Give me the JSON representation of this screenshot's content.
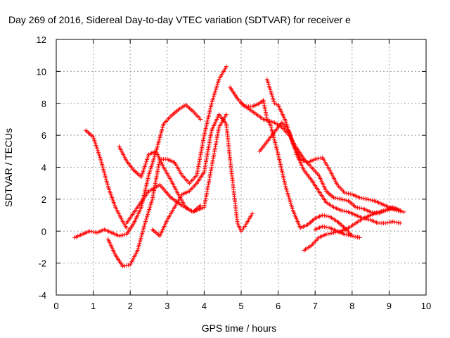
{
  "chart_data": {
    "type": "scatter",
    "title": "Day 269 of 2016, Sidereal Day-to-day VTEC variation (SDTVAR) for receiver e",
    "xlabel": "GPS time / hours",
    "ylabel": "SDTVAR / TECUs",
    "xlim": [
      0,
      10
    ],
    "ylim": [
      -4,
      12
    ],
    "x_ticks": [
      "0",
      "1",
      "2",
      "3",
      "4",
      "5",
      "6",
      "7",
      "8",
      "9",
      "10"
    ],
    "y_ticks": [
      "-4",
      "-2",
      "0",
      "2",
      "4",
      "6",
      "8",
      "10",
      "12"
    ],
    "grid": true,
    "marker": "+",
    "colors": {
      "series": "#ff0000",
      "grid": "#a0a0a0",
      "axes": "#000000"
    },
    "series": [
      {
        "x": [
          0.8,
          1.0,
          1.2,
          1.4,
          1.6,
          1.8,
          1.9
        ],
        "y": [
          6.3,
          5.9,
          4.5,
          2.8,
          1.5,
          0.6,
          0.2
        ]
      },
      {
        "x": [
          0.5,
          0.7,
          0.9,
          1.1,
          1.3,
          1.5,
          1.7,
          1.9,
          2.1,
          2.3,
          2.5,
          2.7,
          2.9,
          3.1,
          3.3,
          3.5,
          3.7,
          3.9
        ],
        "y": [
          -0.4,
          -0.2,
          0.0,
          -0.1,
          0.1,
          -0.1,
          -0.3,
          -0.2,
          0.5,
          1.5,
          3.5,
          5.0,
          6.7,
          7.2,
          7.6,
          7.9,
          7.5,
          7.0
        ]
      },
      {
        "x": [
          1.4,
          1.6,
          1.8,
          2.0,
          2.2,
          2.4,
          2.6,
          2.8,
          3.0,
          3.2,
          3.4,
          3.6,
          3.8,
          4.0,
          4.2,
          4.4,
          4.6
        ],
        "y": [
          -0.5,
          -1.5,
          -2.2,
          -2.1,
          -1.2,
          0.5,
          2.0,
          4.5,
          4.5,
          4.3,
          3.5,
          3.0,
          3.5,
          6.0,
          8.0,
          9.5,
          10.3
        ]
      },
      {
        "x": [
          1.7,
          1.9,
          2.1,
          2.3,
          2.5,
          2.7,
          2.9,
          3.1,
          3.3,
          3.5,
          3.7,
          3.9
        ],
        "y": [
          5.3,
          4.4,
          3.8,
          3.4,
          4.8,
          5.0,
          4.0,
          3.2,
          2.3,
          1.5,
          1.2,
          1.6
        ]
      },
      {
        "x": [
          2.6,
          2.8,
          3.0,
          3.2,
          3.4,
          3.6,
          3.8,
          4.0,
          4.2,
          4.4,
          4.6,
          4.7,
          4.8,
          4.9,
          5.0,
          5.1,
          5.2,
          5.3
        ],
        "y": [
          0.1,
          -0.3,
          0.7,
          1.5,
          2.3,
          2.5,
          3.0,
          3.7,
          6.3,
          7.3,
          6.7,
          4.5,
          2.5,
          0.5,
          0.0,
          0.3,
          0.7,
          1.1
        ]
      },
      {
        "x": [
          1.9,
          2.2,
          2.5,
          2.8,
          3.1,
          3.4,
          3.7,
          4.0,
          4.2,
          4.4,
          4.6
        ],
        "y": [
          0.5,
          1.5,
          2.5,
          2.9,
          2.1,
          1.6,
          1.2,
          1.5,
          4.0,
          6.5,
          7.3
        ]
      },
      {
        "x": [
          4.7,
          4.9,
          5.1,
          5.3,
          5.5,
          5.6,
          5.7,
          5.8,
          6.0,
          6.2,
          6.4,
          6.6,
          6.8,
          7.0,
          7.2,
          7.4,
          7.6,
          7.8,
          8.0,
          8.2
        ],
        "y": [
          9.0,
          8.3,
          7.8,
          7.8,
          8.0,
          8.2,
          7.0,
          6.6,
          4.8,
          2.8,
          1.3,
          0.2,
          0.4,
          0.8,
          1.0,
          0.9,
          0.6,
          0.2,
          -0.3,
          -0.4
        ]
      },
      {
        "x": [
          5.0,
          5.3,
          5.6,
          5.9,
          6.1,
          6.3,
          6.5,
          6.7,
          6.9,
          7.1,
          7.3,
          7.5,
          7.7,
          7.9,
          8.1,
          8.3,
          8.5,
          8.7,
          8.9,
          9.1,
          9.3
        ],
        "y": [
          8.0,
          7.5,
          7.0,
          6.8,
          6.5,
          6.0,
          5.2,
          4.5,
          4.0,
          3.5,
          2.5,
          2.1,
          2.0,
          1.9,
          1.5,
          1.4,
          1.2,
          1.1,
          1.3,
          1.5,
          1.3
        ]
      },
      {
        "x": [
          5.7,
          5.9,
          6.0,
          6.2,
          6.4,
          6.6,
          6.8,
          7.0,
          7.2,
          7.4,
          7.6,
          7.8,
          8.0,
          8.2,
          8.4,
          8.6,
          8.8,
          9.0,
          9.2,
          9.4
        ],
        "y": [
          9.5,
          8.0,
          7.9,
          6.9,
          5.5,
          4.5,
          4.3,
          4.5,
          4.6,
          3.8,
          2.9,
          2.4,
          2.3,
          2.1,
          2.0,
          1.9,
          1.7,
          1.5,
          1.3,
          1.2
        ]
      },
      {
        "x": [
          5.5,
          5.7,
          5.9,
          6.1,
          6.3,
          6.5,
          6.7,
          6.9,
          7.1,
          7.3,
          7.5,
          7.7,
          7.9,
          8.1,
          8.3,
          8.5,
          8.7,
          8.9,
          9.1,
          9.3
        ],
        "y": [
          5.0,
          5.6,
          6.2,
          6.8,
          6.2,
          4.8,
          3.8,
          3.2,
          2.5,
          1.8,
          1.5,
          1.3,
          1.2,
          1.0,
          0.8,
          0.7,
          0.5,
          0.5,
          0.6,
          0.5
        ]
      },
      {
        "x": [
          6.7,
          6.9,
          7.1,
          7.3,
          7.5,
          7.7,
          7.9,
          8.1,
          8.3,
          8.5,
          8.7,
          8.9,
          9.1,
          9.3
        ],
        "y": [
          -1.2,
          -0.9,
          -0.4,
          -0.2,
          -0.1,
          0.0,
          0.2,
          0.5,
          0.8,
          1.0,
          1.2,
          1.3,
          1.4,
          1.3
        ]
      },
      {
        "x": [
          7.0,
          7.2,
          7.4,
          7.6,
          7.8,
          8.0,
          8.2
        ],
        "y": [
          0.1,
          0.3,
          0.2,
          0.0,
          -0.2,
          -0.3,
          -0.4
        ]
      }
    ]
  }
}
